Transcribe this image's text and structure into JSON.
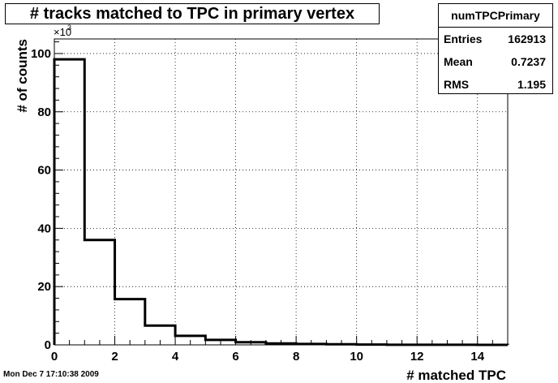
{
  "chart_data": {
    "type": "bar",
    "title": "# tracks matched to TPC  in primary vertex",
    "xlabel": "# matched TPC",
    "ylabel": "# of counts",
    "y_exponent_label": "×10",
    "y_exponent_power": "3",
    "xlim": [
      0,
      15
    ],
    "ylim": [
      0,
      105
    ],
    "x_ticks": [
      0,
      2,
      4,
      6,
      8,
      10,
      12,
      14
    ],
    "y_ticks": [
      0,
      20,
      40,
      60,
      80,
      100
    ],
    "bin_edges": [
      0,
      1,
      2,
      3,
      4,
      5,
      6,
      7,
      8,
      9,
      10,
      11,
      12,
      13,
      14,
      15
    ],
    "values": [
      98,
      36,
      15.7,
      6.6,
      3.1,
      1.7,
      0.9,
      0.5,
      0.3,
      0.2,
      0.1,
      0.05,
      0.03,
      0.02,
      0.01
    ],
    "grid": true,
    "line_color": "#000000"
  },
  "stats_box": {
    "name": "numTPCPrimary",
    "entries_label": "Entries",
    "entries_value": "162913",
    "mean_label": "Mean",
    "mean_value": "0.7237",
    "rms_label": "RMS",
    "rms_value": "1.195"
  },
  "timestamp": "Mon Dec  7 17:10:38 2009"
}
